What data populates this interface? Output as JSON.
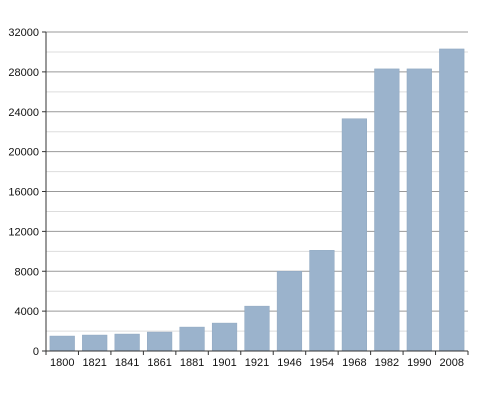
{
  "chart_data": {
    "type": "bar",
    "categories": [
      "1800",
      "1821",
      "1841",
      "1861",
      "1881",
      "1901",
      "1921",
      "1946",
      "1954",
      "1968",
      "1982",
      "1990",
      "2008"
    ],
    "values": [
      1500,
      1600,
      1700,
      1900,
      2400,
      2800,
      4500,
      8000,
      10100,
      23300,
      28300,
      28300,
      30300
    ],
    "ylim": [
      0,
      32000
    ],
    "yticks": [
      0,
      4000,
      8000,
      12000,
      16000,
      20000,
      24000,
      28000,
      32000
    ],
    "grid": true,
    "minor_grid": true,
    "bar_color": "#9bb3cc",
    "bar_edge_color": "#8ea6bf",
    "grid_color": "#999999",
    "minor_grid_color": "#dddddd"
  }
}
